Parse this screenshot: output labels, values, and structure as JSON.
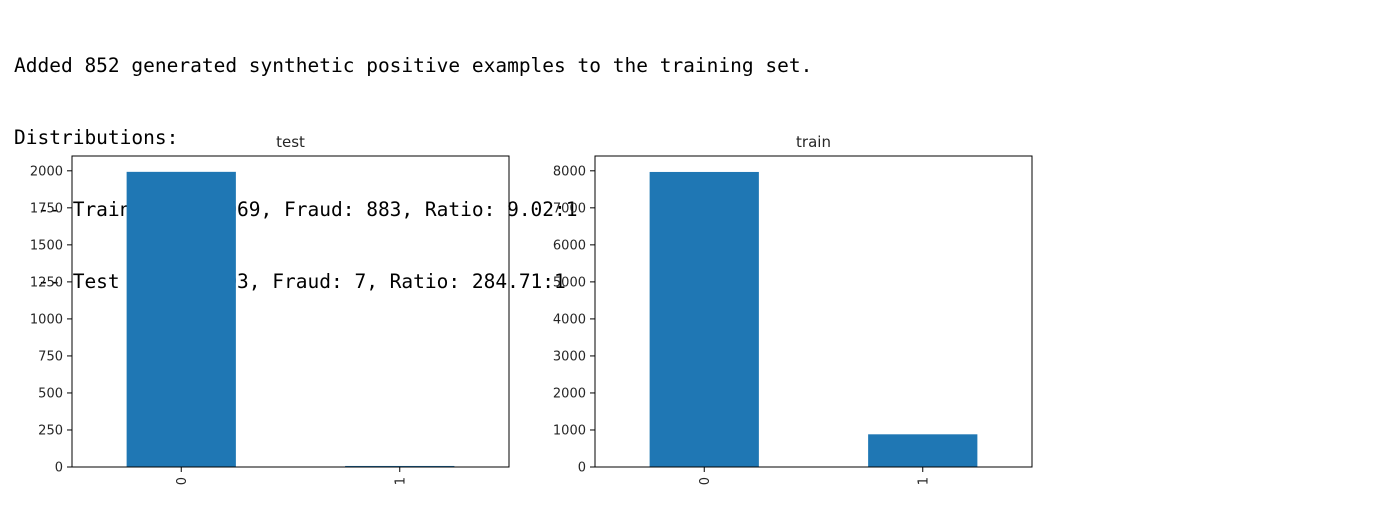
{
  "output": {
    "lines": [
      "Added 852 generated synthetic positive examples to the training set.",
      "Distributions:",
      "  -- Train Pass: 7969, Fraud: 883, Ratio: 9.02:1",
      "  -- Test Pass: 1993, Fraud: 7, Ratio: 284.71:1"
    ]
  },
  "colors": {
    "bar": "#1f77b4",
    "axis": "#000000"
  },
  "chart_data": [
    {
      "type": "bar",
      "title": "test",
      "categories": [
        "0",
        "1"
      ],
      "values": [
        1993,
        7
      ],
      "ylim": [
        0,
        2100
      ],
      "yticks": [
        0,
        250,
        500,
        750,
        1000,
        1250,
        1500,
        1750,
        2000
      ],
      "xtick_rotation": "vertical",
      "grid": false,
      "legend": "none"
    },
    {
      "type": "bar",
      "title": "train",
      "categories": [
        "0",
        "1"
      ],
      "values": [
        7969,
        883
      ],
      "ylim": [
        0,
        8400
      ],
      "yticks": [
        0,
        1000,
        2000,
        3000,
        4000,
        5000,
        6000,
        7000,
        8000
      ],
      "xtick_rotation": "vertical",
      "grid": false,
      "legend": "none"
    }
  ]
}
